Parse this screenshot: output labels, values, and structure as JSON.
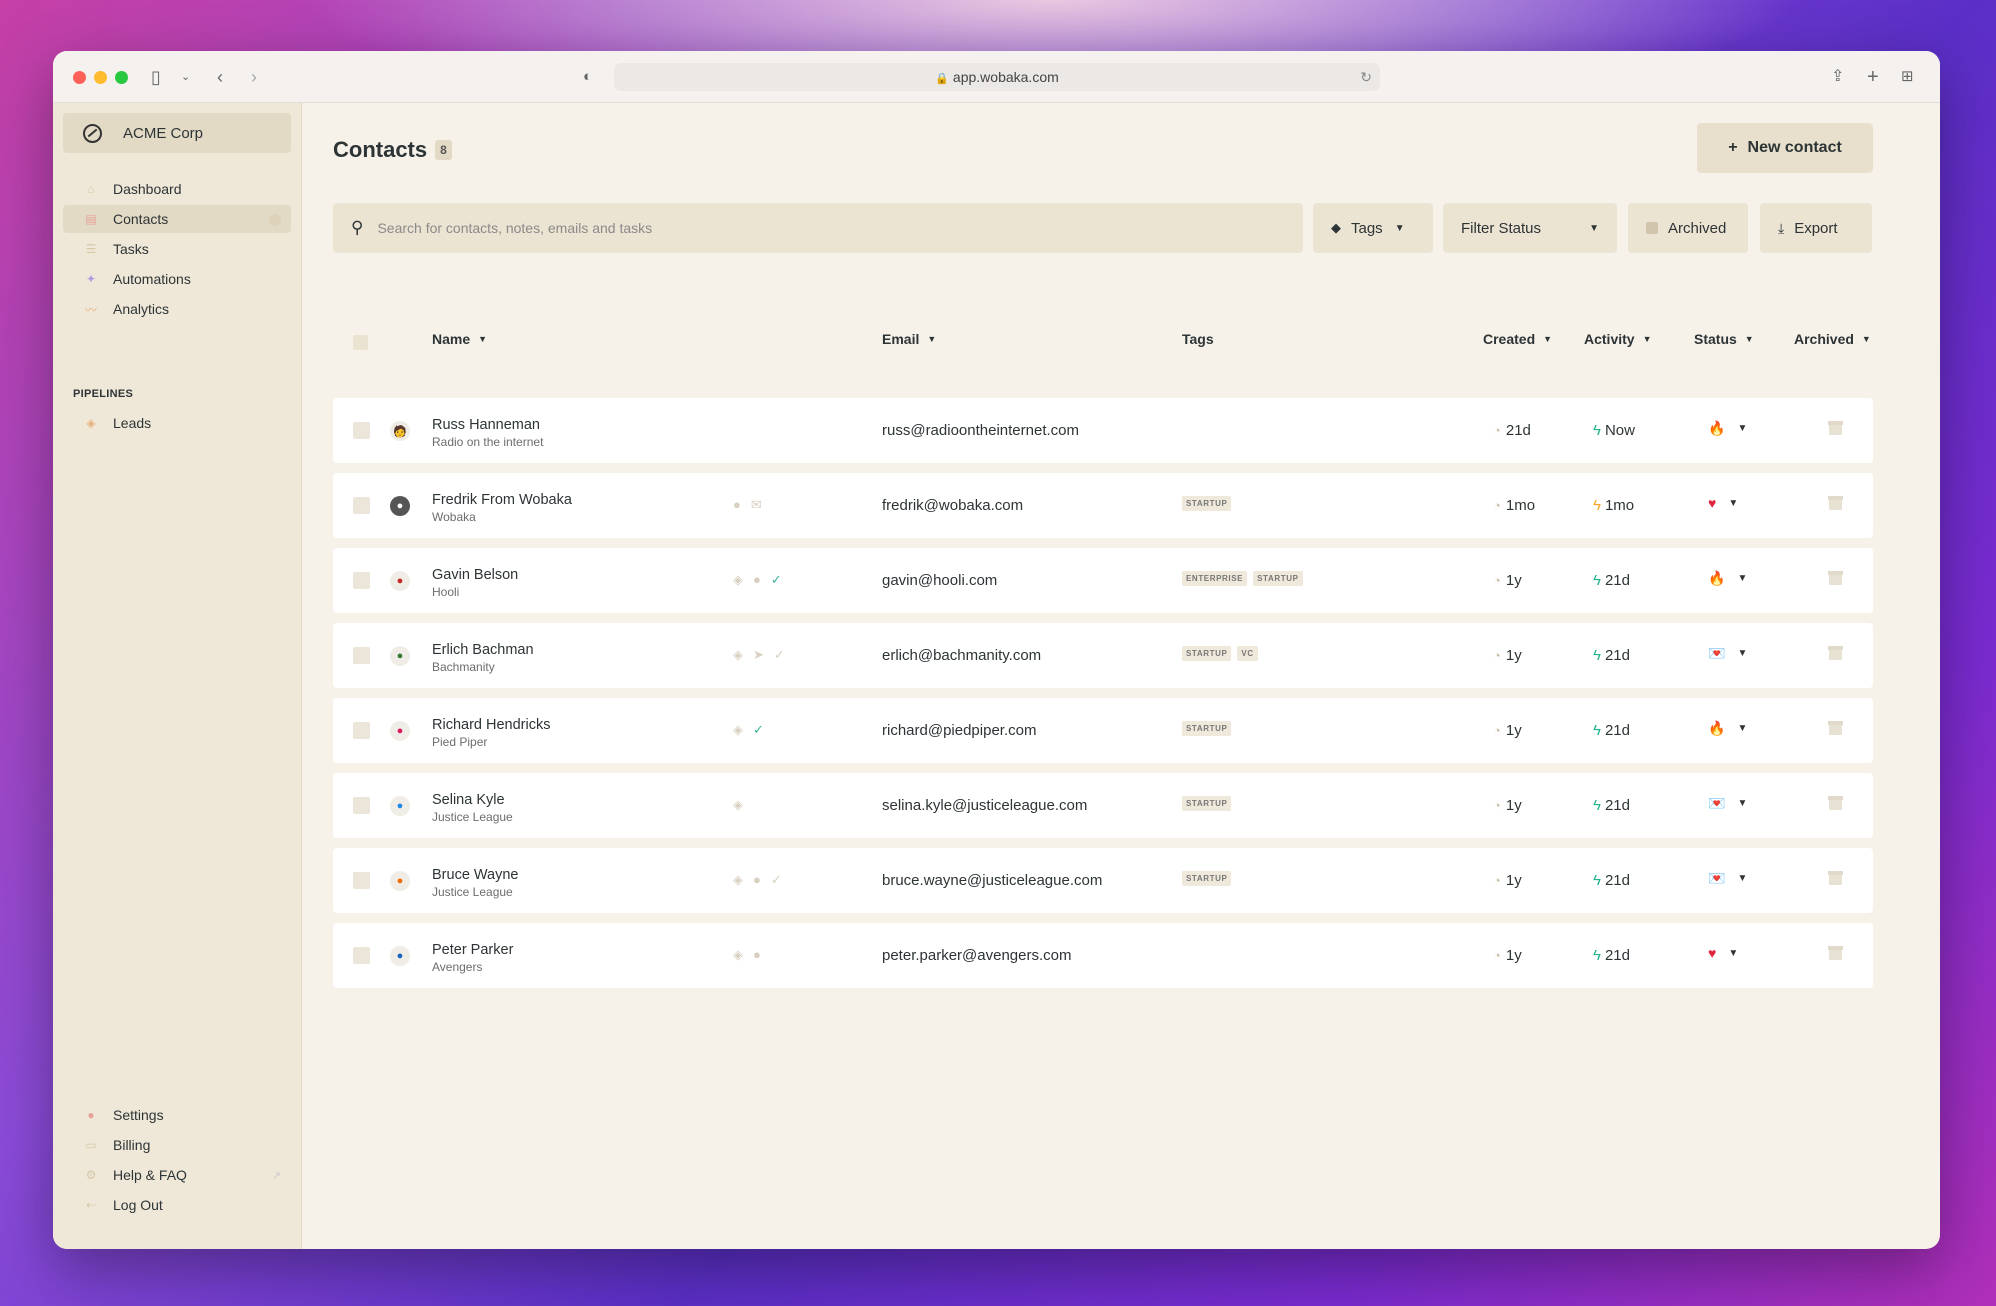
{
  "browser": {
    "url": "app.wobaka.com"
  },
  "sidebar": {
    "org_name": "ACME Corp",
    "items": [
      {
        "label": "Dashboard",
        "icon": "home-icon"
      },
      {
        "label": "Contacts",
        "icon": "contact-card-icon",
        "active": true
      },
      {
        "label": "Tasks",
        "icon": "list-icon"
      },
      {
        "label": "Automations",
        "icon": "wand-icon"
      },
      {
        "label": "Analytics",
        "icon": "chart-icon"
      }
    ],
    "pipelines_label": "PIPELINES",
    "pipelines": [
      {
        "label": "Leads",
        "icon": "stack-icon"
      }
    ],
    "bottom_items": [
      {
        "label": "Settings",
        "icon": "avatar-icon"
      },
      {
        "label": "Billing",
        "icon": "card-icon"
      },
      {
        "label": "Help & FAQ",
        "icon": "gear-icon"
      },
      {
        "label": "Log Out",
        "icon": "logout-icon"
      }
    ]
  },
  "main": {
    "title": "Contacts",
    "count": "8",
    "new_contact_label": "New contact",
    "search_placeholder": "Search for contacts, notes, emails and tasks",
    "tags_label": "Tags",
    "filter_status_label": "Filter Status",
    "archived_label": "Archived",
    "export_label": "Export"
  },
  "table": {
    "headers": {
      "name": "Name",
      "email": "Email",
      "tags": "Tags",
      "created": "Created",
      "activity": "Activity",
      "status": "Status",
      "archived": "Archived"
    },
    "rows": [
      {
        "name": "Russ Hanneman",
        "company": "Radio on the internet",
        "email": "russ@radioontheinternet.com",
        "tags": [],
        "created": "21d",
        "activity": "Now",
        "status": "fire"
      },
      {
        "name": "Fredrik From Wobaka",
        "company": "Wobaka",
        "email": "fredrik@wobaka.com",
        "tags": [
          "STARTUP"
        ],
        "created": "1mo",
        "activity": "1mo",
        "status": "heart"
      },
      {
        "name": "Gavin Belson",
        "company": "Hooli",
        "email": "gavin@hooli.com",
        "tags": [
          "ENTERPRISE",
          "STARTUP"
        ],
        "created": "1y",
        "activity": "21d",
        "status": "fire"
      },
      {
        "name": "Erlich Bachman",
        "company": "Bachmanity",
        "email": "erlich@bachmanity.com",
        "tags": [
          "STARTUP",
          "VC"
        ],
        "created": "1y",
        "activity": "21d",
        "status": "love-letter"
      },
      {
        "name": "Richard Hendricks",
        "company": "Pied Piper",
        "email": "richard@piedpiper.com",
        "tags": [
          "STARTUP"
        ],
        "created": "1y",
        "activity": "21d",
        "status": "fire"
      },
      {
        "name": "Selina Kyle",
        "company": "Justice League",
        "email": "selina.kyle@justiceleague.com",
        "tags": [
          "STARTUP"
        ],
        "created": "1y",
        "activity": "21d",
        "status": "love-letter"
      },
      {
        "name": "Bruce Wayne",
        "company": "Justice League",
        "email": "bruce.wayne@justiceleague.com",
        "tags": [
          "STARTUP"
        ],
        "created": "1y",
        "activity": "21d",
        "status": "love-letter"
      },
      {
        "name": "Peter Parker",
        "company": "Avengers",
        "email": "peter.parker@avengers.com",
        "tags": [],
        "created": "1y",
        "activity": "21d",
        "status": "heart"
      }
    ]
  }
}
